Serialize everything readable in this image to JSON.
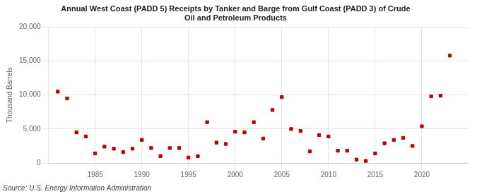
{
  "chart_data": {
    "type": "scatter",
    "title": "Annual West Coast (PADD 5) Receipts by Tanker and Barge from Gulf Coast (PADD 3) of Crude\nOil and Petroleum Products",
    "ylabel": "Thousand Barrels",
    "source": "Source: U.S. Energy Information Administration",
    "x": [
      1981,
      1982,
      1983,
      1984,
      1985,
      1986,
      1987,
      1988,
      1989,
      1990,
      1991,
      1992,
      1993,
      1994,
      1995,
      1996,
      1997,
      1998,
      1999,
      2000,
      2001,
      2002,
      2003,
      2004,
      2005,
      2006,
      2007,
      2008,
      2009,
      2010,
      2011,
      2012,
      2013,
      2014,
      2015,
      2016,
      2017,
      2018,
      2019,
      2020,
      2021,
      2022,
      2023
    ],
    "values": [
      10500,
      9500,
      4500,
      3900,
      1400,
      2400,
      2100,
      1600,
      2100,
      3400,
      2200,
      1000,
      2200,
      2200,
      800,
      1000,
      6000,
      3000,
      2800,
      4600,
      4500,
      6000,
      3600,
      7800,
      9700,
      5000,
      4700,
      1700,
      4100,
      3900,
      1800,
      1800,
      500,
      300,
      1400,
      2900,
      3400,
      3700,
      2500,
      5400,
      9800,
      9900,
      15800
    ],
    "color": "#bb0000",
    "marker": "square",
    "xlim": [
      1980,
      2025
    ],
    "xticks": [
      1985,
      1990,
      1995,
      2000,
      2005,
      2010,
      2015,
      2020
    ],
    "ylim": [
      0,
      20000
    ],
    "yticks": [
      0,
      {
        "value": 5000,
        "label": "5,000"
      },
      {
        "value": 10000,
        "label": "10,000"
      },
      {
        "value": 15000,
        "label": "15,000"
      },
      {
        "value": 20000,
        "label": "20,000"
      }
    ],
    "grid": true
  }
}
